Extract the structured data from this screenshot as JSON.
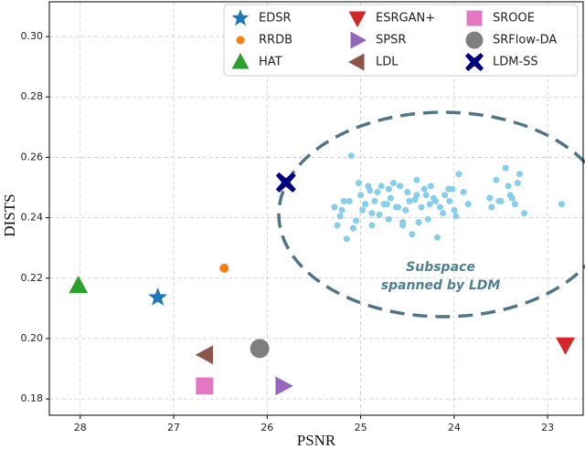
{
  "chart_data": {
    "type": "scatter",
    "xlabel": "PSNR",
    "ylabel": "DISTS",
    "xlim": [
      28.33,
      22.62
    ],
    "ylim": [
      0.1746,
      0.3115
    ],
    "xticks": [
      28,
      27,
      26,
      25,
      24,
      23
    ],
    "yticks": [
      0.18,
      {
        "value": 0.2,
        "label": "0.20"
      },
      0.22,
      0.24,
      0.26,
      0.28,
      {
        "value": 0.3,
        "label": "0.30"
      }
    ],
    "grid": true,
    "legend": "upper right",
    "legend_columns": 3,
    "annotation": [
      "Subspace",
      "spanned by LDM"
    ],
    "series": [
      {
        "name": "EDSR",
        "color": "#1f77b4",
        "marker": "star",
        "x": [
          27.17
        ],
        "values": [
          0.2136
        ]
      },
      {
        "name": "RRDB",
        "color": "#ff7f0e",
        "marker": "small-circle",
        "x": [
          26.46
        ],
        "values": [
          0.2233
        ]
      },
      {
        "name": "HAT",
        "color": "#2ca02c",
        "marker": "triangle-up",
        "x": [
          28.02
        ],
        "values": [
          0.2175
        ]
      },
      {
        "name": "ESRGAN+",
        "color": "#d62728",
        "marker": "triangle-down",
        "x": [
          22.81
        ],
        "values": [
          0.1979
        ]
      },
      {
        "name": "SPSR",
        "color": "#9467bd",
        "marker": "triangle-right",
        "x": [
          25.83
        ],
        "values": [
          0.1843
        ]
      },
      {
        "name": "LDL",
        "color": "#8c564b",
        "marker": "triangle-left",
        "x": [
          26.66
        ],
        "values": [
          0.1946
        ]
      },
      {
        "name": "SROOE",
        "color": "#e377c2",
        "marker": "square",
        "x": [
          26.67
        ],
        "values": [
          0.1843
        ]
      },
      {
        "name": "SRFlow-DA",
        "color": "#7f7f7f",
        "marker": "circle",
        "x": [
          26.08
        ],
        "values": [
          0.1967
        ]
      },
      {
        "name": "LDM-SS",
        "color": "#000080",
        "marker": "x",
        "x": [
          25.8
        ],
        "values": [
          0.2517
        ]
      },
      {
        "color": "#87ceeb",
        "marker": "dot",
        "x": [
          25.28,
          25.22,
          25.2,
          25.15,
          25.1,
          25.05,
          25.0,
          24.95,
          24.9,
          24.85,
          24.8,
          24.78,
          24.75,
          24.7,
          24.68,
          24.65,
          24.6,
          24.55,
          24.5,
          24.45,
          24.42,
          24.4,
          24.35,
          24.3,
          24.28,
          24.25,
          24.2,
          24.18,
          24.15,
          24.1,
          24.05,
          24.0,
          23.95,
          23.9,
          23.85,
          23.6,
          23.55,
          23.5,
          23.45,
          23.4,
          23.35,
          23.3,
          23.25,
          22.85,
          25.12,
          25.08,
          24.98,
          24.92,
          24.88,
          24.82,
          24.72,
          24.62,
          24.58,
          24.52,
          24.48,
          24.38,
          24.32,
          24.22,
          24.12,
          24.02,
          23.98,
          23.62,
          23.52,
          23.42,
          23.32,
          25.25,
          25.18,
          25.02,
          24.88,
          24.7,
          24.55,
          24.4,
          24.26,
          24.06,
          23.38
        ],
        "values": [
          0.2435,
          0.2405,
          0.2425,
          0.233,
          0.2605,
          0.239,
          0.2475,
          0.2445,
          0.249,
          0.2455,
          0.241,
          0.2505,
          0.2445,
          0.2395,
          0.2465,
          0.2515,
          0.2435,
          0.2375,
          0.2485,
          0.2345,
          0.246,
          0.2525,
          0.2435,
          0.2475,
          0.2395,
          0.2505,
          0.2455,
          0.2335,
          0.2435,
          0.2475,
          0.2455,
          0.2425,
          0.2545,
          0.2485,
          0.2445,
          0.2435,
          0.2525,
          0.2455,
          0.2565,
          0.2475,
          0.2445,
          0.2545,
          0.2415,
          0.2445,
          0.2455,
          0.2365,
          0.2425,
          0.2505,
          0.2375,
          0.2485,
          0.2445,
          0.2435,
          0.2505,
          0.2425,
          0.2455,
          0.2385,
          0.2495,
          0.2465,
          0.2415,
          0.2495,
          0.2405,
          0.2465,
          0.2455,
          0.2505,
          0.2515,
          0.2375,
          0.2455,
          0.2515,
          0.2415,
          0.2495,
          0.2385,
          0.2475,
          0.2445,
          0.2495,
          0.2465
        ]
      }
    ]
  }
}
